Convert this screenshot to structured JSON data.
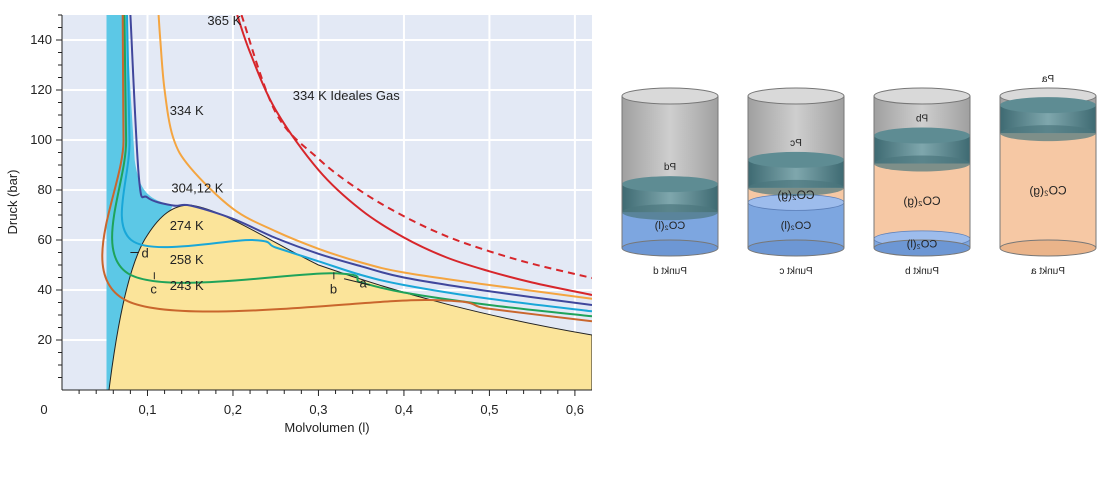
{
  "chart_data": {
    "type": "line",
    "xlabel": "Molvolumen (l)",
    "ylabel": "Druck (bar)",
    "xlim": [
      0,
      0.62
    ],
    "ylim": [
      0,
      150
    ],
    "x_ticks": [
      0.1,
      0.2,
      0.3,
      0.4,
      0.5,
      0.6
    ],
    "x_tick_labels": [
      "0,1",
      "0,2",
      "0,3",
      "0,4",
      "0,5",
      "0,6"
    ],
    "y_ticks": [
      20,
      40,
      60,
      80,
      100,
      120,
      140
    ],
    "y_tick_labels": [
      "20",
      "40",
      "60",
      "80",
      "100",
      "120",
      "140"
    ],
    "origin_label": "0",
    "grid": true,
    "colors": {
      "plot_bg": "#e3e9f5",
      "two_phase": "#fbe49a",
      "liquid": "#5cc8e6",
      "supercritical_band": "#8ed8f0",
      "tie_274": "#19a7d8",
      "tie_258": "#1fa35a",
      "tie_243": "#c9662d"
    },
    "isotherms": [
      {
        "label": "365 K",
        "color": "#d7262b",
        "dashed": false,
        "x": [
          0.205,
          0.22,
          0.25,
          0.3,
          0.35,
          0.4,
          0.45,
          0.5,
          0.55,
          0.62
        ],
        "y": [
          150,
          135,
          112,
          88,
          72,
          61,
          53,
          47.5,
          43,
          38
        ]
      },
      {
        "label": "334 K Ideales Gas",
        "color": "#d7262b",
        "dashed": true,
        "x": [
          0.21,
          0.25,
          0.3,
          0.35,
          0.4,
          0.45,
          0.5,
          0.55,
          0.62
        ],
        "y": [
          150,
          111,
          92.5,
          79.5,
          69.5,
          61.5,
          55.5,
          50.5,
          44.8
        ]
      },
      {
        "label": "334 K",
        "color": "#f4a540",
        "dashed": false,
        "x": [
          0.113,
          0.115,
          0.12,
          0.13,
          0.15,
          0.2,
          0.25,
          0.3,
          0.35,
          0.4,
          0.5,
          0.62
        ],
        "y": [
          150,
          140,
          120,
          101,
          89,
          72.5,
          63.5,
          56.5,
          51,
          47,
          42,
          36.5
        ]
      },
      {
        "label": "304,12 K",
        "color": "#40479c",
        "dashed": false,
        "x": [
          0.08,
          0.09,
          0.1,
          0.13,
          0.15,
          0.2,
          0.25,
          0.3,
          0.35,
          0.4,
          0.5,
          0.62
        ],
        "y": [
          150,
          85,
          77,
          73.8,
          73.8,
          68.5,
          60.8,
          54.5,
          49.5,
          45,
          39.5,
          34
        ]
      },
      {
        "label": "274 K",
        "color": "#19a7d8",
        "dashed": false,
        "x": [
          0.076,
          0.079,
          0.081,
          0.223,
          0.25,
          0.3,
          0.35,
          0.4,
          0.5,
          0.62
        ],
        "y": [
          150,
          100,
          60,
          60,
          57,
          51.5,
          46,
          42,
          36.5,
          31.5
        ]
      },
      {
        "label": "258 K",
        "color": "#1fa35a",
        "dashed": false,
        "x": [
          0.073,
          0.075,
          0.077,
          0.318,
          0.35,
          0.4,
          0.5,
          0.62
        ],
        "y": [
          150,
          100,
          46.7,
          46.7,
          43,
          39,
          34,
          29.5
        ]
      },
      {
        "label": "243 K",
        "color": "#c9662d",
        "dashed": false,
        "x": [
          0.071,
          0.072,
          0.074,
          0.43,
          0.5,
          0.62
        ],
        "y": [
          150,
          100,
          36,
          36,
          32.5,
          27.5
        ]
      }
    ],
    "points": [
      {
        "label": "a",
        "x": 0.37,
        "y": 43
      },
      {
        "label": "b",
        "x": 0.318,
        "y": 46.7
      },
      {
        "label": "c",
        "x": 0.108,
        "y": 46.7
      },
      {
        "label": "d",
        "x": 0.093,
        "y": 55
      }
    ]
  },
  "cylinders": [
    {
      "label": "Punkt d",
      "pressure": "Pd",
      "liquid": "CO₂(l)",
      "gas": ""
    },
    {
      "label": "Punkt c",
      "pressure": "Pc",
      "liquid": "CO₂(l)",
      "gas": "CO₂(g)"
    },
    {
      "label": "Punkt b",
      "pressure": "Pb",
      "liquid": "CO₂(l)",
      "gas": "CO₂(g)"
    },
    {
      "label": "Punkt a",
      "pressure": "Pa",
      "liquid": "",
      "gas": "CO₂(g)"
    }
  ]
}
